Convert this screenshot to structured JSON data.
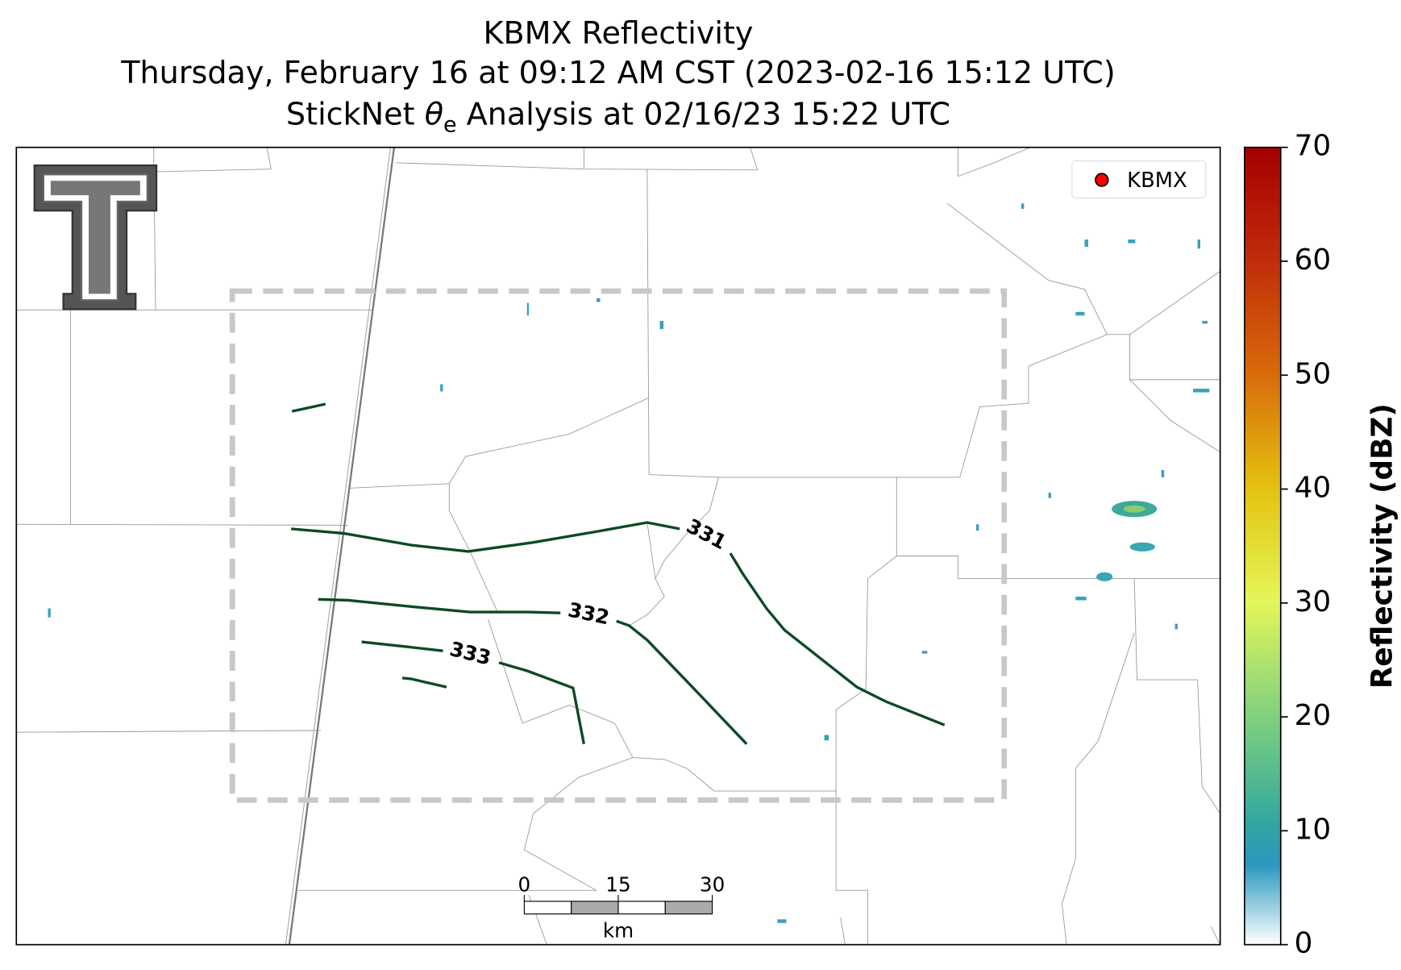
{
  "title_lines": [
    "KBMX Reflectivity",
    "Thursday, February 16 at 09:12 AM CST (2023-02-16 15:12 UTC)"
  ],
  "analysis_title": {
    "prefix": "StickNet ",
    "symbol": "θ",
    "subscript": "e",
    "suffix": " Analysis at 02/16/23 15:22 UTC"
  },
  "legend": {
    "label": "KBMX",
    "color": "#ff0000"
  },
  "contours": [
    {
      "level": 331
    },
    {
      "level": 332
    },
    {
      "level": 333
    }
  ],
  "contour_color": "#0b4a25",
  "scale_bar": {
    "ticks": [
      0,
      15,
      30
    ],
    "unit": "km"
  },
  "colorbar": {
    "label": "Reflectivity (dBZ)",
    "lim": [
      0,
      70
    ],
    "ticks": [
      0,
      10,
      20,
      30,
      40,
      50,
      60,
      70
    ]
  }
}
